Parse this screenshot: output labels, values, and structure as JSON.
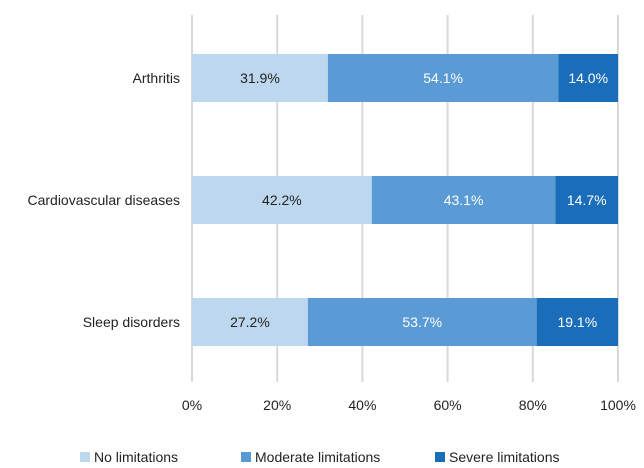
{
  "chart_data": {
    "type": "bar",
    "orientation": "horizontal",
    "stacked": "percent",
    "categories": [
      "Arthritis",
      "Cardiovascular diseases",
      "Sleep disorders"
    ],
    "series": [
      {
        "name": "No limitations",
        "values": [
          31.9,
          42.2,
          27.2
        ],
        "labels": [
          "31.9%",
          "42.2%",
          "27.2%"
        ],
        "color": "#bdd7ee",
        "label_color": "#222222"
      },
      {
        "name": "Moderate limitations",
        "values": [
          54.1,
          43.1,
          53.7
        ],
        "labels": [
          "54.1%",
          "43.1%",
          "53.7%"
        ],
        "color": "#5b9bd5",
        "label_color": "#ffffff"
      },
      {
        "name": "Severe limitations",
        "values": [
          14.0,
          14.7,
          19.1
        ],
        "labels": [
          "14.0%",
          "14.7%",
          "19.1%"
        ],
        "color": "#1a6db8",
        "label_color": "#ffffff"
      }
    ],
    "xlim": [
      0,
      100
    ],
    "xticks": [
      "0%",
      "20%",
      "40%",
      "60%",
      "80%",
      "100%"
    ],
    "grid": true,
    "grid_color": "#d9d9d9",
    "legend_position": "bottom"
  }
}
